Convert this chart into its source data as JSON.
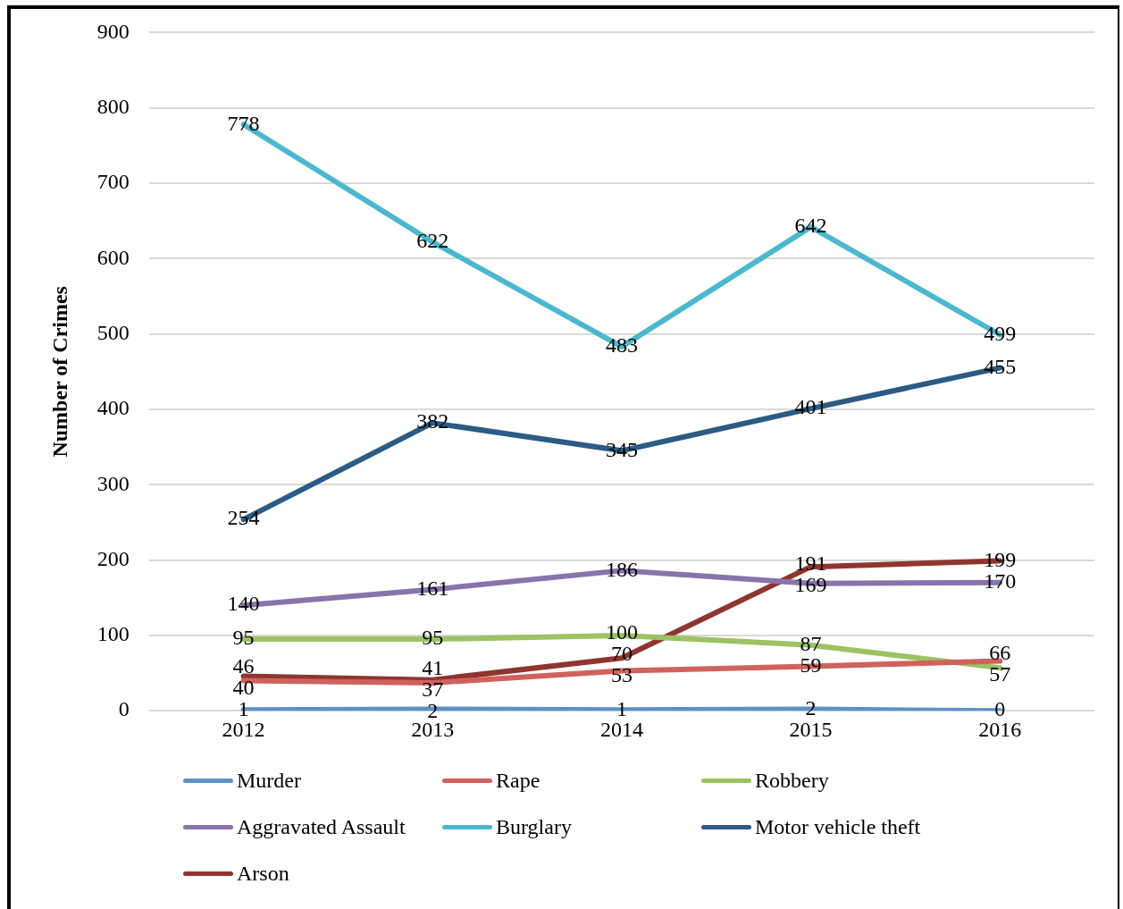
{
  "chart_data": {
    "type": "line",
    "ylabel": "Number of Crimes",
    "categories": [
      "2012",
      "2013",
      "2014",
      "2015",
      "2016"
    ],
    "series": [
      {
        "name": "Murder",
        "color": "#5b93c8",
        "values": [
          1,
          2,
          1,
          2,
          0
        ]
      },
      {
        "name": "Rape",
        "color": "#d0625d",
        "values": [
          40,
          37,
          53,
          59,
          66
        ]
      },
      {
        "name": "Robbery",
        "color": "#9dc263",
        "values": [
          95,
          95,
          100,
          87,
          57
        ]
      },
      {
        "name": "Aggravated Assault",
        "color": "#8a73ac",
        "values": [
          140,
          161,
          186,
          169,
          170
        ]
      },
      {
        "name": "Burglary",
        "color": "#4bb8cf",
        "values": [
          778,
          622,
          483,
          642,
          499
        ]
      },
      {
        "name": "Motor vehicle theft",
        "color": "#2c5b85",
        "values": [
          254,
          382,
          345,
          401,
          455
        ]
      },
      {
        "name": "Arson",
        "color": "#8e3530",
        "values": [
          46,
          41,
          70,
          191,
          199
        ]
      }
    ],
    "ylim": [
      0,
      900
    ],
    "yticks": [
      0,
      100,
      200,
      300,
      400,
      500,
      600,
      700,
      800,
      900
    ],
    "grid": "y",
    "legend": "bottom",
    "data_labels": true,
    "marker": "none",
    "line_style": "solid"
  }
}
